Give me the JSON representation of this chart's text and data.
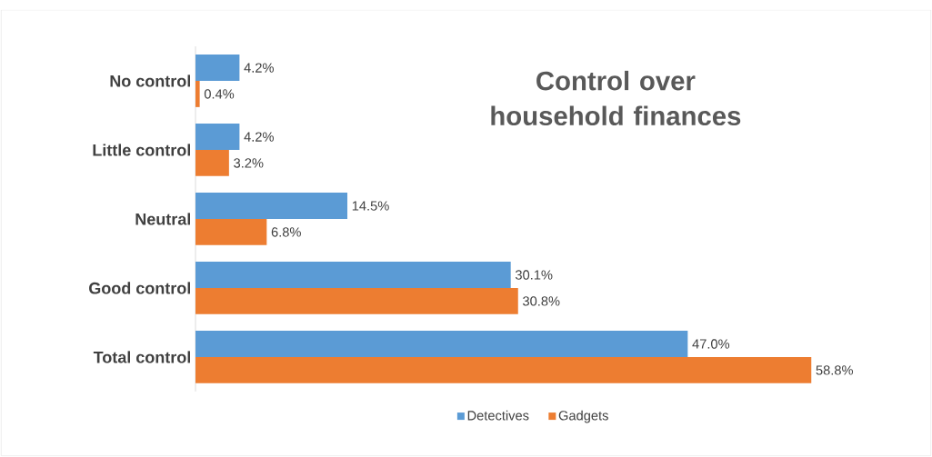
{
  "chart_data": {
    "type": "bar",
    "orientation": "horizontal",
    "title": "Control over household finances",
    "categories": [
      "No control",
      "Little control",
      "Neutral",
      "Good control",
      "Total control"
    ],
    "series": [
      {
        "name": "Detectives",
        "color": "#5b9bd5",
        "values": [
          4.2,
          4.2,
          14.5,
          30.1,
          47.0
        ],
        "value_labels": [
          "4.2%",
          "4.2%",
          "14.5%",
          "30.1%",
          "47.0%"
        ]
      },
      {
        "name": "Gadgets",
        "color": "#ed7d31",
        "values": [
          0.4,
          3.2,
          6.8,
          30.8,
          58.8
        ],
        "value_labels": [
          "0.4%",
          "3.2%",
          "6.8%",
          "30.8%",
          "58.8%"
        ]
      }
    ],
    "legend": "bottom"
  }
}
